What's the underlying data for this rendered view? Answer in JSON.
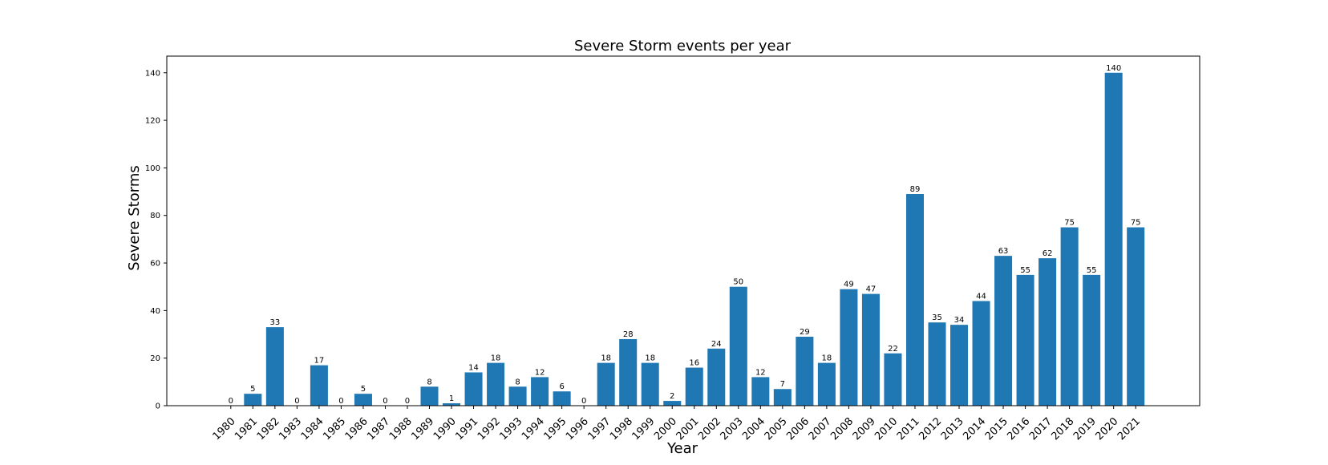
{
  "chart_data": {
    "type": "bar",
    "title": "Severe Storm events per year",
    "xlabel": "Year",
    "ylabel": "Severe Storms",
    "ylim": [
      0,
      147
    ],
    "yticks": [
      0,
      20,
      40,
      60,
      80,
      100,
      120,
      140
    ],
    "grid": false,
    "bar_color": "#1f77b4",
    "categories": [
      "1980",
      "1981",
      "1982",
      "1983",
      "1984",
      "1985",
      "1986",
      "1987",
      "1988",
      "1989",
      "1990",
      "1991",
      "1992",
      "1993",
      "1994",
      "1995",
      "1996",
      "1997",
      "1998",
      "1999",
      "2000",
      "2001",
      "2002",
      "2003",
      "2004",
      "2005",
      "2006",
      "2007",
      "2008",
      "2009",
      "2010",
      "2011",
      "2012",
      "2013",
      "2014",
      "2015",
      "2016",
      "2017",
      "2018",
      "2019",
      "2020",
      "2021"
    ],
    "values": [
      0,
      5,
      33,
      0,
      17,
      0,
      5,
      0,
      0,
      8,
      1,
      14,
      18,
      8,
      12,
      6,
      0,
      18,
      28,
      18,
      2,
      16,
      24,
      50,
      12,
      7,
      29,
      18,
      49,
      47,
      22,
      89,
      35,
      34,
      44,
      63,
      55,
      62,
      75,
      55,
      140,
      75
    ]
  }
}
